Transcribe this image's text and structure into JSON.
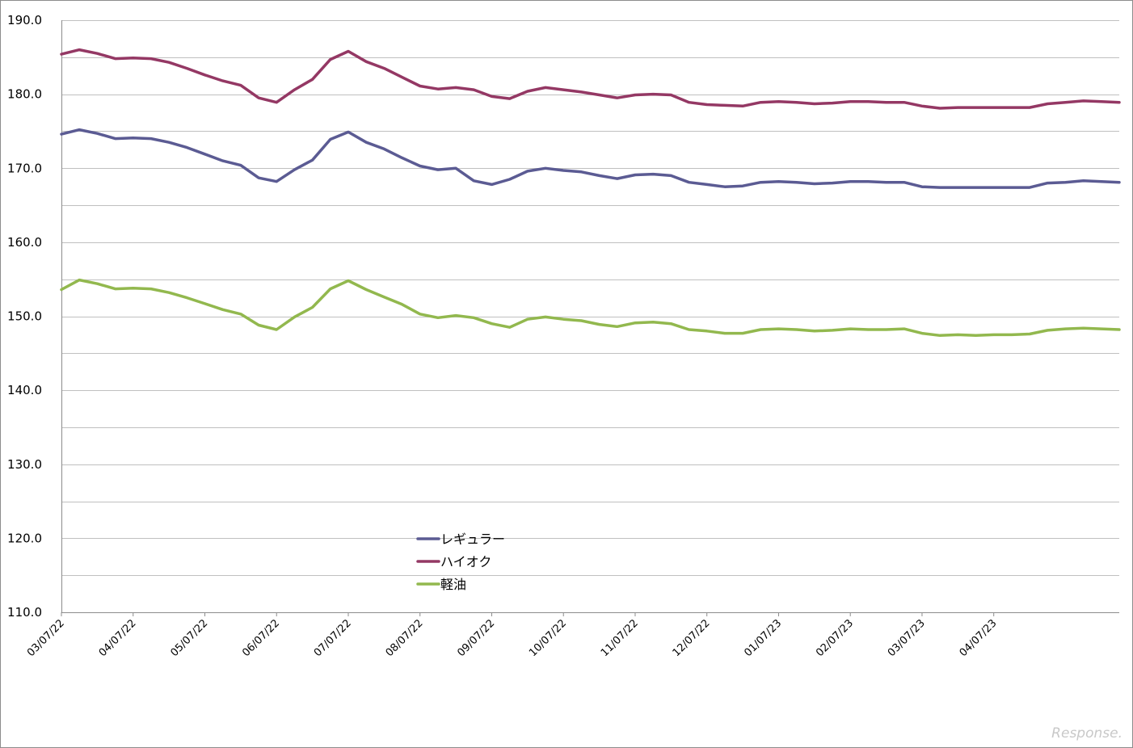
{
  "chart_data": {
    "type": "line",
    "title": "",
    "xlabel": "",
    "ylabel": "",
    "ylim": [
      110,
      190
    ],
    "y_ticks": [
      "110.0",
      "120.0",
      "130.0",
      "140.0",
      "150.0",
      "160.0",
      "170.0",
      "180.0",
      "190.0"
    ],
    "x_tick_labels": [
      "03/07/22",
      "04/07/22",
      "05/07/22",
      "06/07/22",
      "07/07/22",
      "08/07/22",
      "09/07/22",
      "10/07/22",
      "11/07/22",
      "12/07/22",
      "01/07/23",
      "02/07/23",
      "03/07/23",
      "04/07/23"
    ],
    "grid": "horizontal",
    "legend_position": "lower-center",
    "series": [
      {
        "name": "レギュラー",
        "color": "#5b5b93",
        "values": [
          174.6,
          175.2,
          174.7,
          174.0,
          174.1,
          174.0,
          173.5,
          172.8,
          171.9,
          171.0,
          170.4,
          168.7,
          168.2,
          169.8,
          171.1,
          173.9,
          174.9,
          173.5,
          172.6,
          171.4,
          170.3,
          169.8,
          170.0,
          168.3,
          167.8,
          168.5,
          169.6,
          170.0,
          169.7,
          169.5,
          169.0,
          168.6,
          169.1,
          169.2,
          169.0,
          168.1,
          167.8,
          167.5,
          167.6,
          168.1,
          168.2,
          168.1,
          167.9,
          168.0,
          168.2,
          168.2,
          168.1,
          168.1,
          167.5,
          167.4,
          167.4,
          167.4,
          167.4,
          167.4,
          167.4,
          168.0,
          168.1,
          168.3,
          168.2,
          168.1
        ]
      },
      {
        "name": "ハイオク",
        "color": "#943864",
        "values": [
          185.4,
          186.0,
          185.5,
          184.8,
          184.9,
          184.8,
          184.3,
          183.5,
          182.6,
          181.8,
          181.2,
          179.5,
          178.9,
          180.6,
          182.0,
          184.7,
          185.8,
          184.4,
          183.5,
          182.3,
          181.1,
          180.7,
          180.9,
          180.6,
          179.7,
          179.4,
          180.4,
          180.9,
          180.6,
          180.3,
          179.9,
          179.5,
          179.9,
          180.0,
          179.9,
          178.9,
          178.6,
          178.5,
          178.4,
          178.9,
          179.0,
          178.9,
          178.7,
          178.8,
          179.0,
          179.0,
          178.9,
          178.9,
          178.4,
          178.1,
          178.2,
          178.2,
          178.2,
          178.2,
          178.2,
          178.7,
          178.9,
          179.1,
          179.0,
          178.9
        ]
      },
      {
        "name": "軽油",
        "color": "#92b84e",
        "values": [
          153.6,
          154.9,
          154.4,
          153.7,
          153.8,
          153.7,
          153.2,
          152.5,
          151.7,
          150.9,
          150.3,
          148.8,
          148.2,
          149.9,
          151.2,
          153.7,
          154.8,
          153.6,
          152.6,
          151.6,
          150.3,
          149.8,
          150.1,
          149.8,
          149.0,
          148.5,
          149.6,
          149.9,
          149.6,
          149.4,
          148.9,
          148.6,
          149.1,
          149.2,
          149.0,
          148.2,
          148.0,
          147.7,
          147.7,
          148.2,
          148.3,
          148.2,
          148.0,
          148.1,
          148.3,
          148.2,
          148.2,
          148.3,
          147.7,
          147.4,
          147.5,
          147.4,
          147.5,
          147.5,
          147.6,
          148.1,
          148.3,
          148.4,
          148.3,
          148.2
        ]
      }
    ]
  },
  "watermark": "Response."
}
